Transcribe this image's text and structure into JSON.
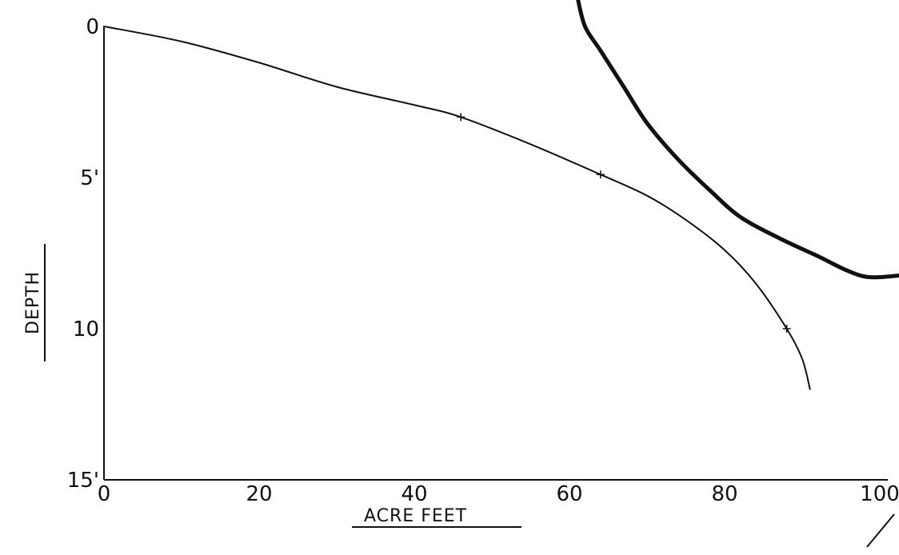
{
  "chart_data": {
    "type": "line",
    "xlabel": "ACRE FEET",
    "ylabel": "DEPTH",
    "xlim": [
      0,
      100
    ],
    "ylim": [
      0,
      15
    ],
    "y_inverted": true,
    "grid": false,
    "x_ticks": [
      {
        "value": 0,
        "label": "0"
      },
      {
        "value": 20,
        "label": "20"
      },
      {
        "value": 40,
        "label": "40"
      },
      {
        "value": 60,
        "label": "60"
      },
      {
        "value": 80,
        "label": "80"
      },
      {
        "value": 100,
        "label": "100"
      }
    ],
    "y_ticks": [
      {
        "value": 0,
        "label": "0"
      },
      {
        "value": 5,
        "label": "5'"
      },
      {
        "value": 10,
        "label": "10"
      },
      {
        "value": 15,
        "label": "15'"
      }
    ],
    "series": [
      {
        "style": "thin",
        "color": "#111111",
        "points": [
          [
            0,
            0
          ],
          [
            10,
            0.5
          ],
          [
            20,
            1.2
          ],
          [
            30,
            2.0
          ],
          [
            40,
            2.6
          ],
          [
            46,
            3.0
          ],
          [
            55,
            3.9
          ],
          [
            64,
            4.9
          ],
          [
            70,
            5.6
          ],
          [
            75,
            6.4
          ],
          [
            80,
            7.4
          ],
          [
            84,
            8.5
          ],
          [
            88,
            10.0
          ],
          [
            90,
            11.0
          ],
          [
            91,
            12.0
          ]
        ]
      },
      {
        "style": "thick",
        "color": "#111111",
        "points": [
          [
            61,
            -1.0
          ],
          [
            62,
            0.0
          ],
          [
            64,
            0.8
          ],
          [
            67,
            2.0
          ],
          [
            70,
            3.2
          ],
          [
            74,
            4.4
          ],
          [
            78,
            5.4
          ],
          [
            82,
            6.3
          ],
          [
            87,
            7.0
          ],
          [
            92,
            7.6
          ],
          [
            96,
            8.1
          ],
          [
            99,
            8.3
          ],
          [
            104,
            8.2
          ]
        ]
      }
    ],
    "marked_points": [
      [
        46,
        3.0
      ],
      [
        64,
        4.9
      ],
      [
        88,
        10.0
      ]
    ]
  }
}
